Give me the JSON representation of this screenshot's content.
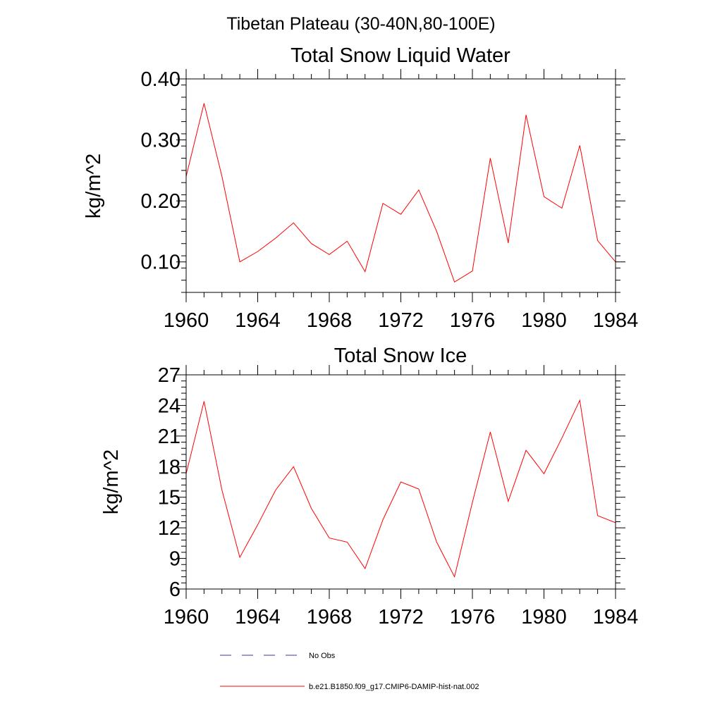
{
  "figure": {
    "title": "Tibetan Plateau (30-40N,80-100E)",
    "colors": {
      "series": "#ff0000",
      "obs": "#3a3a8c",
      "axes": "#000000"
    }
  },
  "legend": {
    "items": [
      {
        "label": "No Obs",
        "style": "dashed",
        "color": "#3a3a8c"
      },
      {
        "label": "b.e21.B1850.f09_g17.CMIP6-DAMIP-hist-nat.002",
        "style": "solid",
        "color": "#ff0000"
      }
    ]
  },
  "chart_data": [
    {
      "type": "line",
      "title": "Total Snow Liquid Water",
      "xlabel": "",
      "ylabel": "kg/m^2",
      "xlim": [
        1960,
        1984
      ],
      "ylim": [
        0.05,
        0.4
      ],
      "xticks": [
        1960,
        1964,
        1968,
        1972,
        1976,
        1980,
        1984
      ],
      "yticks": [
        0.1,
        0.2,
        0.3,
        0.4
      ],
      "ytick_labels": [
        "0.10",
        "0.20",
        "0.30",
        "0.40"
      ],
      "grid": false,
      "x": [
        1960,
        1961,
        1962,
        1963,
        1964,
        1965,
        1966,
        1967,
        1968,
        1969,
        1970,
        1971,
        1972,
        1973,
        1974,
        1975,
        1976,
        1977,
        1978,
        1979,
        1980,
        1981,
        1982,
        1983,
        1984
      ],
      "series": [
        {
          "name": "b.e21.B1850.f09_g17.CMIP6-DAMIP-hist-nat.002",
          "values": [
            0.24,
            0.36,
            0.24,
            0.1,
            0.117,
            0.139,
            0.164,
            0.13,
            0.112,
            0.134,
            0.084,
            0.196,
            0.178,
            0.218,
            0.15,
            0.067,
            0.085,
            0.27,
            0.131,
            0.341,
            0.207,
            0.188,
            0.291,
            0.135,
            0.1
          ]
        }
      ]
    },
    {
      "type": "line",
      "title": "Total Snow Ice",
      "xlabel": "",
      "ylabel": "kg/m^2",
      "xlim": [
        1960,
        1984
      ],
      "ylim": [
        6,
        27
      ],
      "xticks": [
        1960,
        1964,
        1968,
        1972,
        1976,
        1980,
        1984
      ],
      "yticks": [
        6,
        9,
        12,
        15,
        18,
        21,
        24,
        27
      ],
      "ytick_labels": [
        "6",
        "9",
        "12",
        "15",
        "18",
        "21",
        "24",
        "27"
      ],
      "grid": false,
      "x": [
        1960,
        1961,
        1962,
        1963,
        1964,
        1965,
        1966,
        1967,
        1968,
        1969,
        1970,
        1971,
        1972,
        1973,
        1974,
        1975,
        1976,
        1977,
        1978,
        1979,
        1980,
        1981,
        1982,
        1983,
        1984
      ],
      "series": [
        {
          "name": "b.e21.B1850.f09_g17.CMIP6-DAMIP-hist-nat.002",
          "values": [
            17.3,
            24.4,
            15.7,
            9.1,
            12.3,
            15.7,
            18.0,
            13.9,
            11.0,
            10.6,
            8.0,
            12.8,
            16.5,
            15.8,
            10.6,
            7.2,
            14.5,
            21.4,
            14.6,
            19.6,
            17.3,
            20.8,
            24.5,
            13.2,
            12.5
          ]
        }
      ]
    }
  ]
}
